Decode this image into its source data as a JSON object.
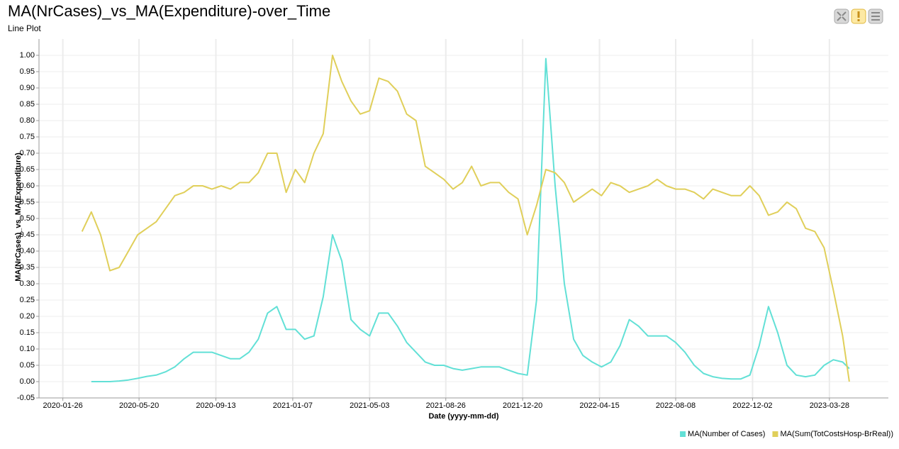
{
  "chart_data": {
    "type": "line",
    "title": "MA(NrCases)_vs_MA(Expenditure)-over_Time",
    "subtitle": "Line Plot",
    "x_label": "Date (yyyy-mm-dd)",
    "y_label": "MA(NrCases)_vs_MA(Expenditure)",
    "x": [
      "2020-02-24",
      "2020-03-09",
      "2020-03-23",
      "2020-04-06",
      "2020-04-20",
      "2020-05-04",
      "2020-05-18",
      "2020-06-01",
      "2020-06-15",
      "2020-06-29",
      "2020-07-13",
      "2020-07-27",
      "2020-08-10",
      "2020-08-24",
      "2020-09-07",
      "2020-09-21",
      "2020-10-05",
      "2020-10-19",
      "2020-11-02",
      "2020-11-16",
      "2020-11-30",
      "2020-12-14",
      "2020-12-28",
      "2021-01-11",
      "2021-01-25",
      "2021-02-08",
      "2021-02-22",
      "2021-03-08",
      "2021-03-22",
      "2021-04-05",
      "2021-04-19",
      "2021-05-03",
      "2021-05-17",
      "2021-05-31",
      "2021-06-14",
      "2021-06-28",
      "2021-07-12",
      "2021-07-26",
      "2021-08-09",
      "2021-08-23",
      "2021-09-06",
      "2021-09-20",
      "2021-10-04",
      "2021-10-18",
      "2021-11-01",
      "2021-11-15",
      "2021-11-29",
      "2021-12-13",
      "2021-12-27",
      "2022-01-10",
      "2022-01-24",
      "2022-02-07",
      "2022-02-21",
      "2022-03-07",
      "2022-03-21",
      "2022-04-04",
      "2022-04-18",
      "2022-05-02",
      "2022-05-16",
      "2022-05-30",
      "2022-06-13",
      "2022-06-27",
      "2022-07-11",
      "2022-07-25",
      "2022-08-08",
      "2022-08-22",
      "2022-09-05",
      "2022-09-19",
      "2022-10-03",
      "2022-10-17",
      "2022-10-31",
      "2022-11-14",
      "2022-11-28",
      "2022-12-12",
      "2022-12-26",
      "2023-01-09",
      "2023-01-23",
      "2023-02-06",
      "2023-02-20",
      "2023-03-06",
      "2023-03-20",
      "2023-04-03",
      "2023-04-17",
      "2023-04-27"
    ],
    "series": [
      {
        "name": "MA(Number of Cases)",
        "color": "#62e0d6",
        "values": [
          null,
          0,
          0,
          0,
          0.002,
          0.005,
          0.01,
          0.016,
          0.02,
          0.03,
          0.045,
          0.07,
          0.09,
          0.09,
          0.09,
          0.08,
          0.07,
          0.07,
          0.09,
          0.13,
          0.21,
          0.23,
          0.16,
          0.16,
          0.13,
          0.14,
          0.26,
          0.45,
          0.37,
          0.19,
          0.16,
          0.14,
          0.21,
          0.21,
          0.17,
          0.12,
          0.09,
          0.06,
          0.05,
          0.05,
          0.04,
          0.035,
          0.04,
          0.045,
          0.045,
          0.045,
          0.035,
          0.025,
          0.02,
          0.25,
          0.99,
          0.6,
          0.3,
          0.13,
          0.08,
          0.06,
          0.045,
          0.06,
          0.11,
          0.19,
          0.17,
          0.14,
          0.14,
          0.14,
          0.12,
          0.09,
          0.05,
          0.025,
          0.015,
          0.01,
          0.008,
          0.008,
          0.02,
          0.11,
          0.23,
          0.15,
          0.05,
          0.02,
          0.015,
          0.02,
          0.05,
          0.067,
          0.06,
          0.04
        ]
      },
      {
        "name": "MA(Sum(TotCostsHosp-BrReal))",
        "color": "#e0cf5a",
        "values": [
          0.46,
          0.52,
          0.45,
          0.34,
          0.35,
          0.4,
          0.45,
          0.47,
          0.49,
          0.53,
          0.57,
          0.58,
          0.6,
          0.6,
          0.59,
          0.6,
          0.59,
          0.61,
          0.61,
          0.64,
          0.7,
          0.7,
          0.58,
          0.65,
          0.61,
          0.7,
          0.76,
          1.0,
          0.92,
          0.86,
          0.82,
          0.83,
          0.93,
          0.92,
          0.89,
          0.82,
          0.8,
          0.66,
          0.64,
          0.62,
          0.59,
          0.61,
          0.66,
          0.6,
          0.61,
          0.61,
          0.58,
          0.56,
          0.45,
          0.54,
          0.65,
          0.64,
          0.61,
          0.55,
          0.57,
          0.59,
          0.57,
          0.61,
          0.6,
          0.58,
          0.59,
          0.6,
          0.62,
          0.6,
          0.59,
          0.59,
          0.58,
          0.56,
          0.59,
          0.58,
          0.57,
          0.57,
          0.6,
          0.57,
          0.51,
          0.52,
          0.55,
          0.53,
          0.47,
          0.46,
          0.41,
          0.28,
          0.14,
          0.0
        ]
      }
    ],
    "xlim": [
      "2019-12-21",
      "2023-06-25"
    ],
    "xticks": [
      "2020-01-26",
      "2020-05-20",
      "2020-09-13",
      "2021-01-07",
      "2021-05-03",
      "2021-08-26",
      "2021-12-20",
      "2022-04-15",
      "2022-08-08",
      "2022-12-02",
      "2023-03-28"
    ],
    "ylim": [
      -0.05,
      1.05
    ],
    "yticks": [
      {
        "value": -0.05,
        "label": "-0.05"
      },
      {
        "value": 0,
        "label": "0.00"
      },
      {
        "value": 0.05,
        "label": "0.05"
      },
      {
        "value": 0.1,
        "label": "0.10"
      },
      {
        "value": 0.15,
        "label": "0.15"
      },
      {
        "value": 0.2,
        "label": "0.20"
      },
      {
        "value": 0.25,
        "label": "0.25"
      },
      {
        "value": 0.3,
        "label": "0.30"
      },
      {
        "value": 0.35,
        "label": "0.35"
      },
      {
        "value": 0.4,
        "label": "0.40"
      },
      {
        "value": 0.45,
        "label": "0.45"
      },
      {
        "value": 0.5,
        "label": "0.50"
      },
      {
        "value": 0.55,
        "label": "0.55"
      },
      {
        "value": 0.6,
        "label": "0.60"
      },
      {
        "value": 0.65,
        "label": "0.65"
      },
      {
        "value": 0.7,
        "label": "0.70"
      },
      {
        "value": 0.75,
        "label": "0.75"
      },
      {
        "value": 0.8,
        "label": "0.80"
      },
      {
        "value": 0.85,
        "label": "0.85"
      },
      {
        "value": 0.9,
        "label": "0.90"
      },
      {
        "value": 0.95,
        "label": "0.95"
      },
      {
        "value": 1,
        "label": "1.00"
      }
    ],
    "grid": true,
    "legend": "bottom-right"
  }
}
